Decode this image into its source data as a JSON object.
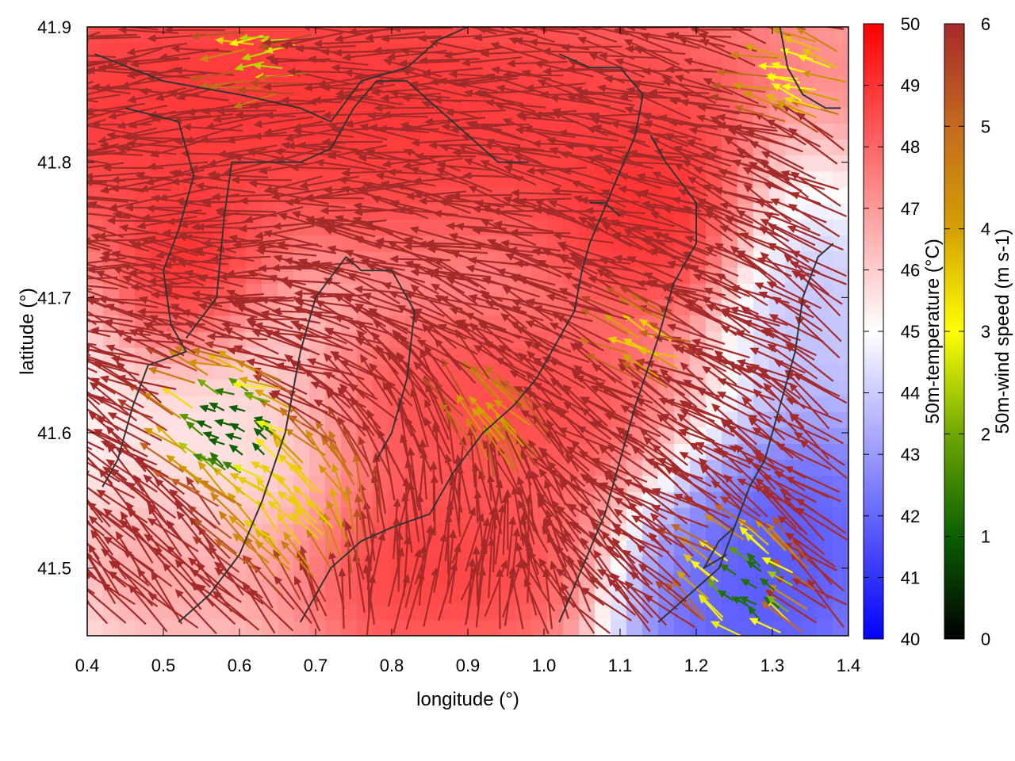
{
  "chart_data": {
    "type": "heatmap",
    "overlay": "vector-field",
    "xlabel": "longitude (°)",
    "ylabel": "latitude (°)",
    "xlim": [
      0.4,
      1.4
    ],
    "ylim": [
      41.45,
      41.9
    ],
    "x_ticks": [
      "0.4",
      "0.5",
      "0.6",
      "0.7",
      "0.8",
      "0.9",
      "1.0",
      "1.1",
      "1.2",
      "1.3",
      "1.4"
    ],
    "x_tick_values": [
      0.4,
      0.5,
      0.6,
      0.7,
      0.8,
      0.9,
      1.0,
      1.1,
      1.2,
      1.3,
      1.4
    ],
    "y_ticks": [
      "41.5",
      "41.6",
      "41.7",
      "41.8",
      "41.9"
    ],
    "y_tick_values": [
      41.5,
      41.6,
      41.7,
      41.8,
      41.9
    ],
    "grid": false,
    "temperature_scale": {
      "label": "50m-temperature (°C)",
      "min": 40,
      "max": 50,
      "ticks": [
        "40",
        "41",
        "42",
        "43",
        "44",
        "45",
        "46",
        "47",
        "48",
        "49",
        "50"
      ],
      "colors": [
        "#0000ff",
        "#ffffff",
        "#ff0000"
      ]
    },
    "wind_scale": {
      "label": "50m-wind speed (m s-1)",
      "min": 0,
      "max": 6,
      "ticks": [
        "0",
        "1",
        "2",
        "3",
        "4",
        "5",
        "6"
      ],
      "colors": [
        "#000000",
        "#0a5f00",
        "#6ea800",
        "#ffff00",
        "#d4a000",
        "#c46a20",
        "#a52a2a"
      ]
    },
    "temperature_regions": [
      {
        "lon": 0.68,
        "lat": 41.84,
        "dlon": 0.55,
        "dlat": 0.09,
        "value": 49.5
      },
      {
        "lon": 0.55,
        "lat": 41.72,
        "dlon": 0.08,
        "dlat": 0.05,
        "value": 49.8
      },
      {
        "lon": 1.15,
        "lat": 41.76,
        "dlon": 0.12,
        "dlat": 0.06,
        "value": 49.5
      },
      {
        "lon": 0.95,
        "lat": 41.62,
        "dlon": 0.25,
        "dlat": 0.06,
        "value": 49.0
      },
      {
        "lon": 0.82,
        "lat": 41.5,
        "dlon": 0.25,
        "dlat": 0.06,
        "value": 49.2
      },
      {
        "lon": 0.62,
        "lat": 41.57,
        "dlon": 0.1,
        "dlat": 0.12,
        "value": 45.2
      },
      {
        "lon": 1.3,
        "lat": 41.52,
        "dlon": 0.13,
        "dlat": 0.1,
        "value": 41.2
      },
      {
        "lon": 1.2,
        "lat": 41.48,
        "dlon": 0.1,
        "dlat": 0.05,
        "value": 41.5
      },
      {
        "lon": 1.33,
        "lat": 41.72,
        "dlon": 0.08,
        "dlat": 0.08,
        "value": 43.5
      }
    ],
    "wind_regions": [
      {
        "lon": 0.6,
        "lat": 41.6,
        "radius": 0.07,
        "speed": 1.0
      },
      {
        "lon": 0.68,
        "lat": 41.54,
        "radius": 0.08,
        "speed": 3.5
      },
      {
        "lon": 1.28,
        "lat": 41.48,
        "radius": 0.06,
        "speed": 1.2
      },
      {
        "lon": 1.35,
        "lat": 41.86,
        "radius": 0.05,
        "speed": 3.0
      },
      {
        "lon": 0.65,
        "lat": 41.88,
        "radius": 0.04,
        "speed": 2.5
      },
      {
        "lon": 0.95,
        "lat": 41.6,
        "radius": 0.05,
        "speed": 4.0
      },
      {
        "lon": 1.15,
        "lat": 41.66,
        "radius": 0.04,
        "speed": 3.5
      }
    ],
    "contours": [
      [
        [
          0.41,
          41.88
        ],
        [
          0.5,
          41.86
        ],
        [
          0.6,
          41.85
        ],
        [
          0.68,
          41.84
        ],
        [
          0.72,
          41.83
        ],
        [
          0.76,
          41.86
        ],
        [
          0.82,
          41.87
        ],
        [
          0.86,
          41.89
        ],
        [
          0.9,
          41.9
        ]
      ],
      [
        [
          0.45,
          41.84
        ],
        [
          0.52,
          41.83
        ],
        [
          0.54,
          41.79
        ],
        [
          0.52,
          41.75
        ],
        [
          0.5,
          41.72
        ],
        [
          0.51,
          41.68
        ],
        [
          0.53,
          41.66
        ],
        [
          0.48,
          41.65
        ],
        [
          0.46,
          41.62
        ],
        [
          0.44,
          41.58
        ],
        [
          0.42,
          41.56
        ]
      ],
      [
        [
          0.53,
          41.67
        ],
        [
          0.57,
          41.7
        ],
        [
          0.58,
          41.76
        ],
        [
          0.59,
          41.8
        ],
        [
          0.62,
          41.8
        ],
        [
          0.68,
          41.8
        ],
        [
          0.72,
          41.81
        ],
        [
          0.75,
          41.84
        ],
        [
          0.78,
          41.86
        ],
        [
          0.82,
          41.86
        ],
        [
          0.86,
          41.84
        ],
        [
          0.9,
          41.82
        ],
        [
          0.94,
          41.8
        ],
        [
          0.98,
          41.8
        ]
      ],
      [
        [
          0.52,
          41.46
        ],
        [
          0.56,
          41.48
        ],
        [
          0.6,
          41.51
        ],
        [
          0.63,
          41.55
        ],
        [
          0.66,
          41.6
        ],
        [
          0.68,
          41.66
        ],
        [
          0.7,
          41.7
        ],
        [
          0.74,
          41.73
        ],
        [
          0.76,
          41.72
        ],
        [
          0.8,
          41.72
        ],
        [
          0.83,
          41.69
        ],
        [
          0.82,
          41.64
        ],
        [
          0.8,
          41.6
        ],
        [
          0.78,
          41.58
        ]
      ],
      [
        [
          0.68,
          41.46
        ],
        [
          0.72,
          41.5
        ],
        [
          0.76,
          41.52
        ],
        [
          0.8,
          41.53
        ],
        [
          0.85,
          41.54
        ],
        [
          0.88,
          41.57
        ],
        [
          0.92,
          41.6
        ],
        [
          0.96,
          41.62
        ],
        [
          0.99,
          41.64
        ],
        [
          1.02,
          41.67
        ],
        [
          1.04,
          41.69
        ],
        [
          1.05,
          41.72
        ],
        [
          1.06,
          41.74
        ],
        [
          1.09,
          41.78
        ],
        [
          1.12,
          41.82
        ],
        [
          1.13,
          41.85
        ],
        [
          1.1,
          41.87
        ],
        [
          1.06,
          41.87
        ],
        [
          1.02,
          41.88
        ]
      ],
      [
        [
          1.02,
          41.46
        ],
        [
          1.05,
          41.5
        ],
        [
          1.08,
          41.54
        ],
        [
          1.1,
          41.58
        ],
        [
          1.12,
          41.62
        ],
        [
          1.15,
          41.67
        ],
        [
          1.17,
          41.71
        ],
        [
          1.2,
          41.74
        ],
        [
          1.2,
          41.77
        ],
        [
          1.16,
          41.8
        ],
        [
          1.14,
          41.82
        ]
      ],
      [
        [
          1.15,
          41.46
        ],
        [
          1.19,
          41.48
        ],
        [
          1.23,
          41.5
        ],
        [
          1.25,
          41.53
        ],
        [
          1.27,
          41.56
        ],
        [
          1.29,
          41.58
        ],
        [
          1.31,
          41.62
        ],
        [
          1.33,
          41.66
        ],
        [
          1.34,
          41.7
        ],
        [
          1.36,
          41.73
        ],
        [
          1.38,
          41.74
        ]
      ],
      [
        [
          1.24,
          41.51
        ],
        [
          1.21,
          41.5
        ],
        [
          1.23,
          41.52
        ],
        [
          1.25,
          41.53
        ]
      ],
      [
        [
          1.31,
          41.9
        ],
        [
          1.32,
          41.87
        ],
        [
          1.34,
          41.85
        ],
        [
          1.37,
          41.84
        ],
        [
          1.39,
          41.84
        ]
      ],
      [
        [
          1.06,
          41.77
        ],
        [
          1.08,
          41.77
        ],
        [
          1.1,
          41.76
        ]
      ]
    ],
    "flow": [
      {
        "lon": 1.0,
        "lat": 41.75,
        "u": -1.0,
        "v": 0.03,
        "weight": 0.35
      },
      {
        "lon": 0.55,
        "lat": 41.85,
        "u": -1.0,
        "v": -0.15,
        "weight": 0.25
      },
      {
        "lon": 1.3,
        "lat": 41.5,
        "u": -0.7,
        "v": 0.7,
        "weight": 0.3
      },
      {
        "lon": 0.9,
        "lat": 41.5,
        "u": 0.8,
        "v": 0.6,
        "weight": 0.2
      },
      {
        "lon": 0.5,
        "lat": 41.5,
        "u": -0.6,
        "v": 0.8,
        "weight": 0.2
      }
    ]
  }
}
